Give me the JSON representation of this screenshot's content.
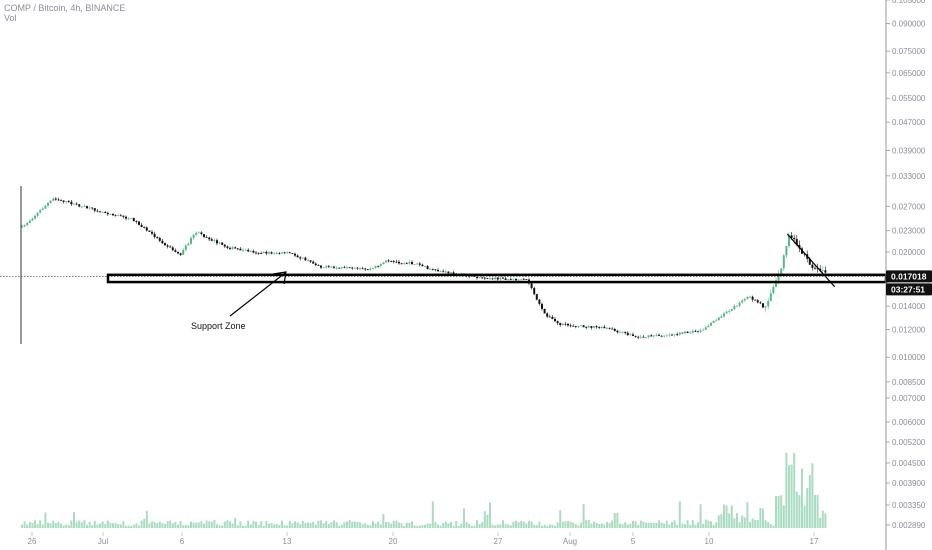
{
  "header": {
    "symbol_line": "COMP / Bitcoin, 4h, BINANCE",
    "volume_label": "Vol"
  },
  "colors": {
    "up": "#53b987",
    "down": "#111111",
    "volume": "#a9dcc1",
    "badge_bg": "#111111",
    "badge_text": "#ffffff",
    "axis_text": "#8a8e99"
  },
  "chart_data": {
    "type": "candlestick",
    "pair": "COMP / Bitcoin",
    "interval": "4h",
    "exchange": "BINANCE",
    "y_scale": "log",
    "ylim": [
      0.0095,
      0.105
    ],
    "y_ticks": [
      "0.105000",
      "0.090000",
      "0.075000",
      "0.065000",
      "0.055000",
      "0.047000",
      "0.039000",
      "0.033000",
      "0.027000",
      "0.023000",
      "0.020000",
      "0.017000",
      "0.014000",
      "0.012000",
      "0.010000",
      "0.008500"
    ],
    "volume_ticks": [
      "0.007000",
      "0.006000",
      "0.005200",
      "0.004500",
      "0.003900",
      "0.003350",
      "0.002890"
    ],
    "x_ticks": [
      "26",
      "Jul",
      "6",
      "13",
      "20",
      "27",
      "Aug",
      "5",
      "10",
      "17"
    ],
    "price_path": [
      {
        "date": "Jun 24",
        "price": 0.0235
      },
      {
        "date": "Jun 26",
        "price": 0.0285
      },
      {
        "date": "Jun 28",
        "price": 0.0268
      },
      {
        "date": "Jul 1",
        "price": 0.0248
      },
      {
        "date": "Jul 3",
        "price": 0.0211
      },
      {
        "date": "Jul 4",
        "price": 0.0196
      },
      {
        "date": "Jul 5",
        "price": 0.0228
      },
      {
        "date": "Jul 7",
        "price": 0.0206
      },
      {
        "date": "Jul 9",
        "price": 0.0199
      },
      {
        "date": "Jul 11",
        "price": 0.0198
      },
      {
        "date": "Jul 13",
        "price": 0.0181
      },
      {
        "date": "Jul 16",
        "price": 0.0178
      },
      {
        "date": "Jul 17",
        "price": 0.0188
      },
      {
        "date": "Jul 19",
        "price": 0.0185
      },
      {
        "date": "Jul 20",
        "price": 0.0177
      },
      {
        "date": "Jul 23",
        "price": 0.0169
      },
      {
        "date": "Jul 26",
        "price": 0.0166
      },
      {
        "date": "Jul 27",
        "price": 0.0134
      },
      {
        "date": "Jul 28",
        "price": 0.0124
      },
      {
        "date": "Jul 31",
        "price": 0.0121
      },
      {
        "date": "Aug 2",
        "price": 0.0114
      },
      {
        "date": "Aug 4",
        "price": 0.0116
      },
      {
        "date": "Aug 6",
        "price": 0.0119
      },
      {
        "date": "Aug 7",
        "price": 0.0129
      },
      {
        "date": "Aug 9",
        "price": 0.0149
      },
      {
        "date": "Aug 10",
        "price": 0.0139
      },
      {
        "date": "Aug 11",
        "price": 0.0175
      },
      {
        "date": "Aug 11.5",
        "price": 0.0222
      },
      {
        "date": "Aug 12",
        "price": 0.0212
      },
      {
        "date": "Aug 13",
        "price": 0.0182
      },
      {
        "date": "Aug 14",
        "price": 0.0174
      }
    ],
    "support_zone": {
      "low": 0.0164,
      "high": 0.0172,
      "label": "Support Zone"
    },
    "resistance_trendline": [
      {
        "date": "Aug 11.5",
        "price": 0.0225
      },
      {
        "date": "Aug 14.5",
        "price": 0.0159
      }
    ],
    "last_price": "0.017018",
    "countdown": "03:27:51"
  }
}
